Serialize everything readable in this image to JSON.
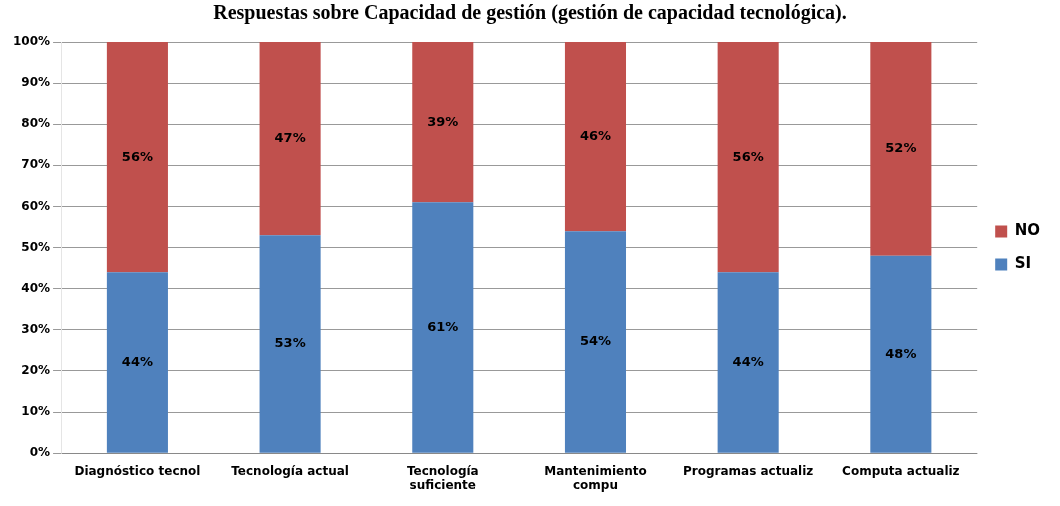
{
  "chart_data": {
    "type": "bar",
    "title": "Respuestas sobre Capacidad de gestión (gestión de capacidad tecnológica).",
    "categories": [
      "Diagnóstico tecnol",
      "Tecnología actual",
      "Tecnología suficiente",
      "Mantenimiento compu",
      "Programas actualiz",
      "Computa actualiz"
    ],
    "series": [
      {
        "name": "SI",
        "color": "#4f81bd",
        "values": [
          44,
          53,
          61,
          54,
          44,
          48
        ],
        "value_labels": [
          "44%",
          "53%",
          "61%",
          "54%",
          "44%",
          "48%"
        ]
      },
      {
        "name": "NO",
        "color": "#c0504d",
        "values": [
          56,
          47,
          39,
          46,
          56,
          52
        ],
        "value_labels": [
          "56%",
          "47%",
          "39%",
          "46%",
          "56%",
          "52%"
        ]
      }
    ],
    "stacked": true,
    "legend": "right",
    "grid": "y",
    "ylim": [
      0,
      100
    ],
    "yticks": [
      {
        "value": 0,
        "label": "0%"
      },
      {
        "value": 10,
        "label": "10%"
      },
      {
        "value": 20,
        "label": "20%"
      },
      {
        "value": 30,
        "label": "30%"
      },
      {
        "value": 40,
        "label": "40%"
      },
      {
        "value": 50,
        "label": "50%"
      },
      {
        "value": 60,
        "label": "60%"
      },
      {
        "value": 70,
        "label": "70%"
      },
      {
        "value": 80,
        "label": "80%"
      },
      {
        "value": 90,
        "label": "90%"
      },
      {
        "value": 100,
        "label": "100%"
      }
    ]
  }
}
